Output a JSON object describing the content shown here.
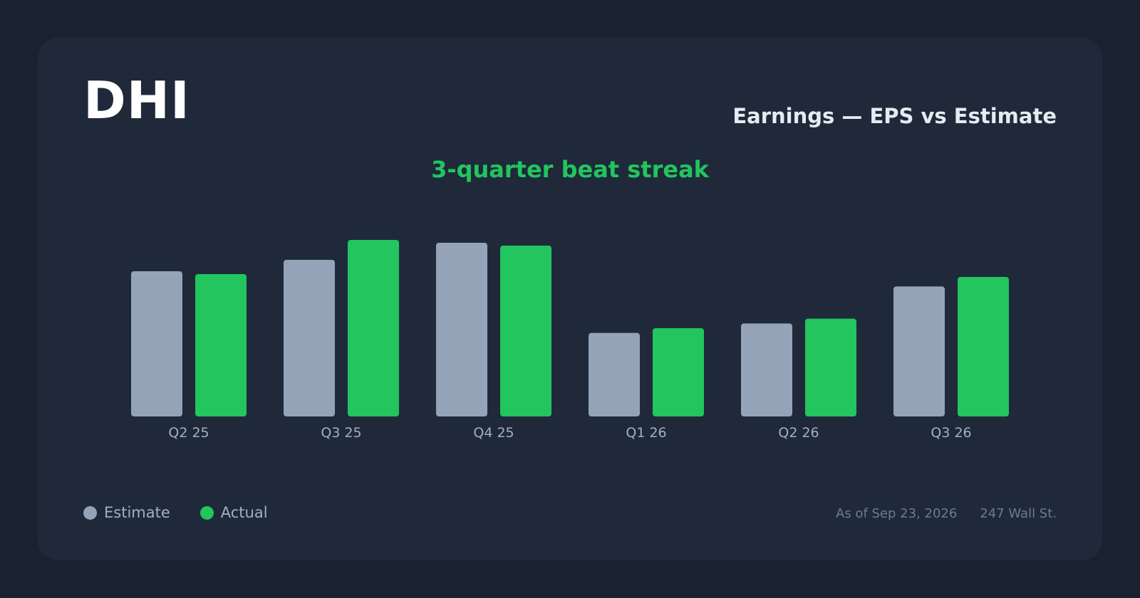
{
  "header": {
    "ticker": "DHI",
    "subtitle": "Earnings — EPS vs Estimate",
    "headline": "3-quarter beat streak"
  },
  "legend": {
    "estimate_label": "Estimate",
    "actual_label": "Actual"
  },
  "footer": {
    "as_of": "As of Sep 23, 2026",
    "source": "247 Wall St."
  },
  "colors": {
    "estimate": "#94a3b8",
    "actual": "#22c55e",
    "tick_label": "#a3b0c2"
  },
  "chart_data": {
    "type": "bar",
    "categories": [
      "Q2 25",
      "Q3 25",
      "Q4 25",
      "Q1 26",
      "Q2 26",
      "Q3 26"
    ],
    "series": [
      {
        "name": "Estimate",
        "values": [
          3.06,
          3.3,
          3.66,
          1.76,
          1.96,
          2.74
        ]
      },
      {
        "name": "Actual",
        "values": [
          3.0,
          3.72,
          3.6,
          1.86,
          2.06,
          2.94
        ]
      }
    ],
    "ylim": [
      0,
      4.2
    ],
    "grid": false,
    "legend_position": "bottom-left"
  }
}
